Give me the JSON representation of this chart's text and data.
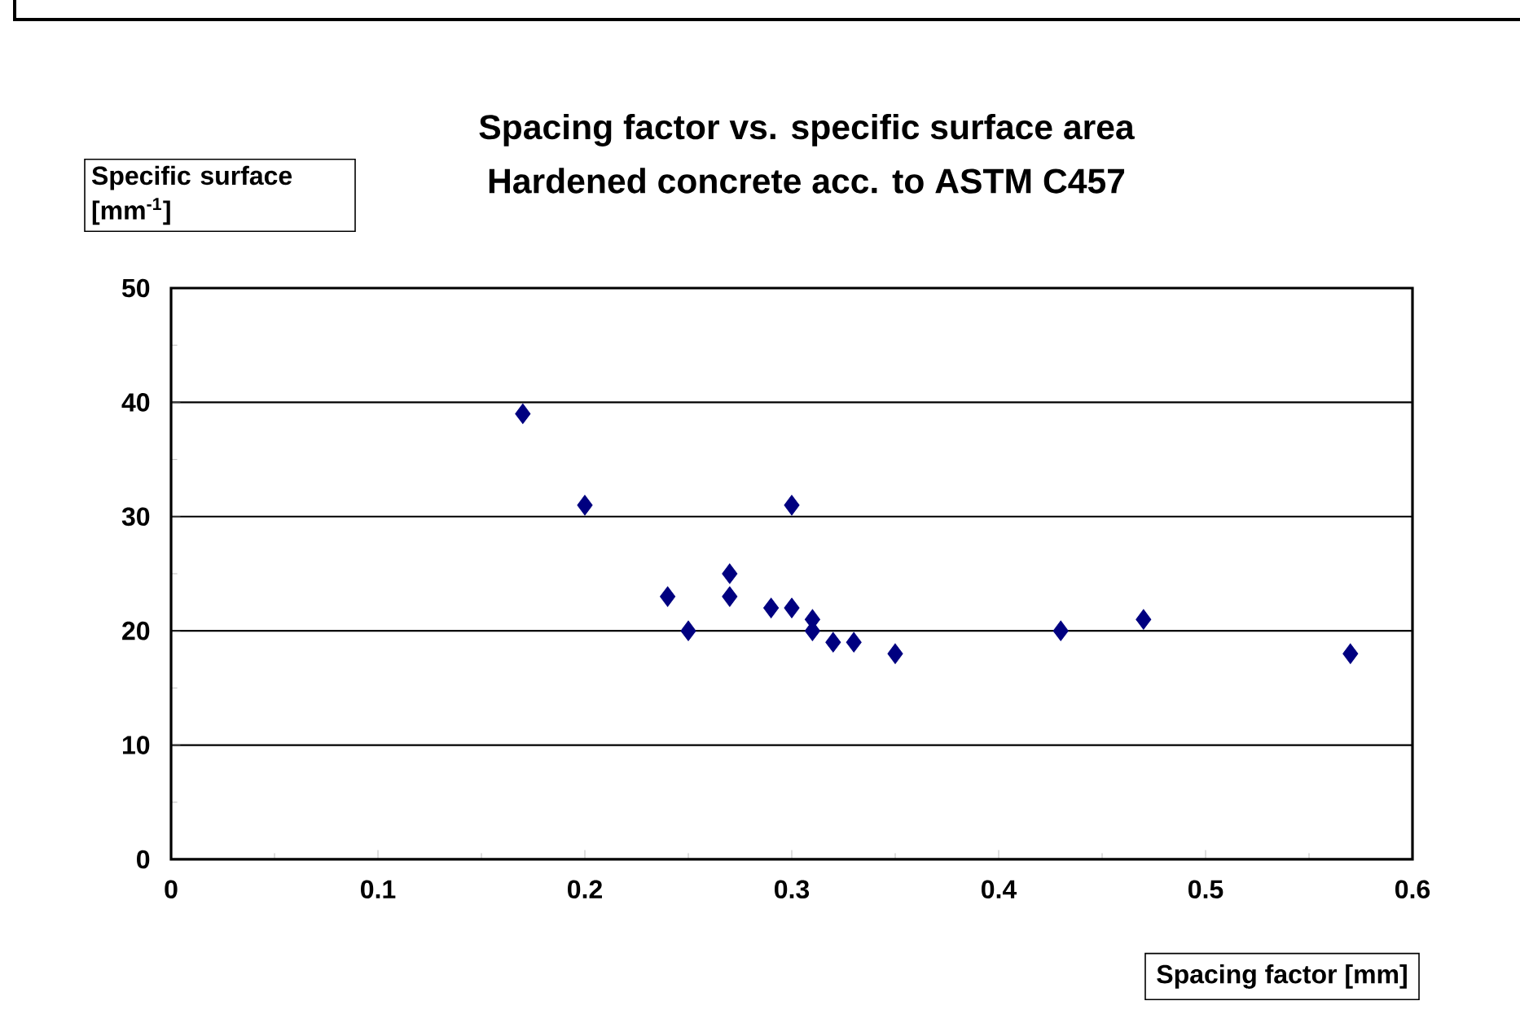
{
  "chart_data": {
    "type": "scatter",
    "title": "Spacing factor vs. specific surface area",
    "subtitle": "Hardened concrete acc. to ASTM C457",
    "xlabel": "Spacing factor [mm]",
    "ylabel": "Specific surface [mm$^{-1}$]",
    "x": [
      0.17,
      0.2,
      0.3,
      0.24,
      0.27,
      0.27,
      0.25,
      0.29,
      0.3,
      0.31,
      0.31,
      0.32,
      0.33,
      0.35,
      0.43,
      0.47,
      0.57
    ],
    "series": [
      {
        "color": "#000080",
        "values": [
          39,
          31,
          31,
          23,
          25,
          23,
          20,
          22,
          22,
          21,
          20,
          19,
          19,
          18,
          20,
          21,
          18
        ]
      }
    ],
    "xlim": [
      0,
      0.6
    ],
    "ylim": [
      0,
      50
    ],
    "xticks": [
      0,
      0.1,
      0.2,
      0.3,
      0.4,
      0.5,
      0.6
    ],
    "yticks": [
      0,
      10,
      20,
      30,
      40,
      50
    ],
    "grid": "y",
    "marker": "diamond"
  }
}
